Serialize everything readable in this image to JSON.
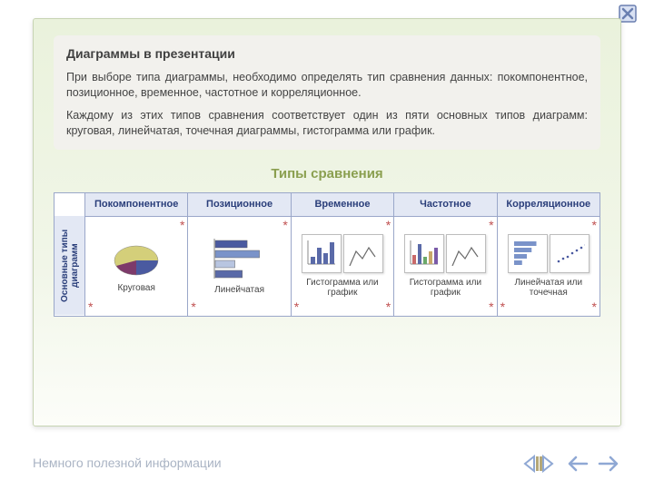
{
  "close_icon": {
    "stroke": "#6a7fb0",
    "fill": "#d9e1f3"
  },
  "frame": {
    "bg_top": "#eaf2dc",
    "bg_bottom": "#fcfdf9",
    "border": "#c7d4b3"
  },
  "text": {
    "heading": "Диаграммы в презентации",
    "para1": "При выборе типа диаграммы, необходимо определять тип сравнения данных: покомпонентное, позиционное, временное, частотное и корреляционное.",
    "para2": "Каждому из этих типов сравнения соответствует один из пяти основных типов диаграмм: круговая, линейчатая, точечная диаграммы, гистограмма или график."
  },
  "subtitle": "Типы сравнения",
  "table": {
    "row_header": "Основные типы диаграмм",
    "columns": [
      "Покомпонентное",
      "Позиционное",
      "Временное",
      "Частотное",
      "Корреляционное"
    ],
    "captions": [
      "Круговая",
      "Линейчатая",
      "Гистограмма или график",
      "Гистограмма или график",
      "Линейчатая или точечная"
    ],
    "header_bg": "#e3e8f4",
    "header_color": "#2a3e7a",
    "border_color": "#9aa7c9",
    "star_color": "#c05050"
  },
  "pie": {
    "colors": [
      "#d4cf7a",
      "#4a5aa0",
      "#7d3a6a"
    ],
    "slices": [
      40,
      30,
      30
    ]
  },
  "hbar": {
    "values": [
      65,
      90,
      40,
      55
    ],
    "colors": [
      "#4a5aa0",
      "#7a93c9",
      "#b8c5e0",
      "#5a6aa8"
    ]
  },
  "histo": {
    "values": [
      20,
      45,
      30,
      60
    ],
    "color": "#5a6aa8"
  },
  "line": {
    "points": [
      [
        0,
        28
      ],
      [
        10,
        12
      ],
      [
        20,
        20
      ],
      [
        30,
        8
      ],
      [
        40,
        18
      ]
    ],
    "color": "#6a6a6a"
  },
  "histo2": {
    "values": [
      25,
      55,
      20,
      35,
      45
    ],
    "colors": [
      "#c96a6a",
      "#5a6aa8",
      "#6aa86a",
      "#c9a76a",
      "#7a5aa8"
    ]
  },
  "corr_bar": {
    "values": [
      70,
      55,
      40,
      25
    ],
    "color": "#7a93c9"
  },
  "scatter": {
    "points": [
      [
        5,
        25
      ],
      [
        10,
        22
      ],
      [
        15,
        20
      ],
      [
        20,
        16
      ],
      [
        25,
        13
      ],
      [
        30,
        10
      ],
      [
        35,
        7
      ]
    ],
    "color": "#4a5aa0"
  },
  "footer": "Немного полезной информации",
  "nav": {
    "arrow_color": "#8fa8d4",
    "bar_color": "#b5a878"
  }
}
